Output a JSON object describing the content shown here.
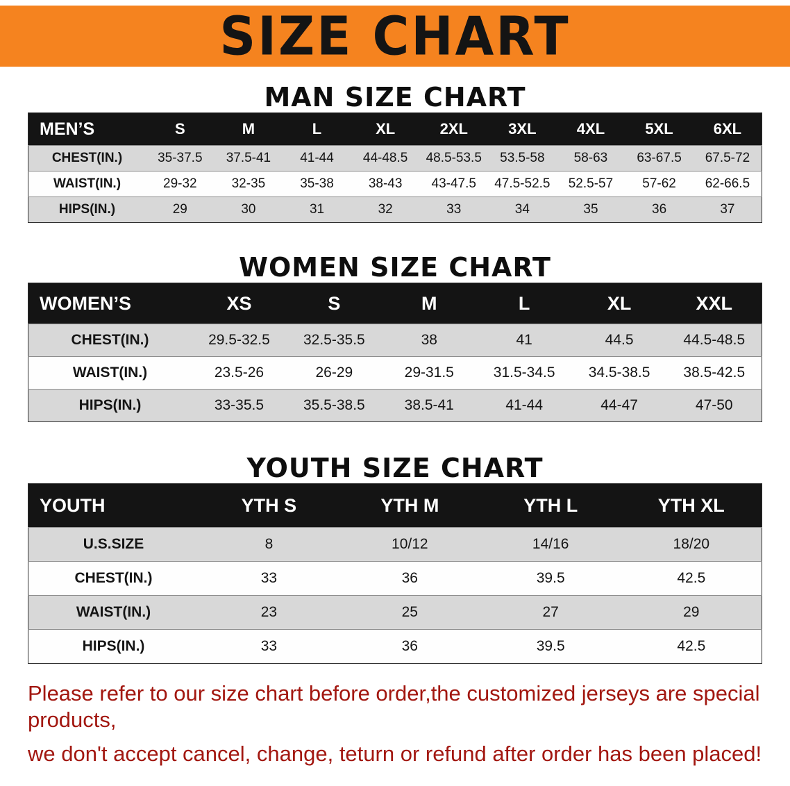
{
  "banner": {
    "title": "SIZE CHART",
    "background_color": "#f5831f",
    "text_color": "#141414"
  },
  "colors": {
    "table_header_bg": "#141414",
    "table_header_text": "#ffffff",
    "row_shaded": "#d8d8d8",
    "row_plain": "#fefefe",
    "disclaimer_text": "#a21710"
  },
  "men": {
    "heading": "MAN SIZE CHART",
    "table": {
      "header": [
        "MEN’S",
        "S",
        "M",
        "L",
        "XL",
        "2XL",
        "3XL",
        "4XL",
        "5XL",
        "6XL"
      ],
      "rows": [
        [
          "CHEST(IN.)",
          "35-37.5",
          "37.5-41",
          "41-44",
          "44-48.5",
          "48.5-53.5",
          "53.5-58",
          "58-63",
          "63-67.5",
          "67.5-72"
        ],
        [
          "WAIST(IN.)",
          "29-32",
          "32-35",
          "35-38",
          "38-43",
          "43-47.5",
          "47.5-52.5",
          "52.5-57",
          "57-62",
          "62-66.5"
        ],
        [
          "HIPS(IN.)",
          "29",
          "30",
          "31",
          "32",
          "33",
          "34",
          "35",
          "36",
          "37"
        ]
      ]
    }
  },
  "women": {
    "heading": "WOMEN SIZE CHART",
    "table": {
      "header": [
        "WOMEN’S",
        "XS",
        "S",
        "M",
        "L",
        "XL",
        "XXL"
      ],
      "rows": [
        [
          "CHEST(IN.)",
          "29.5-32.5",
          "32.5-35.5",
          "38",
          "41",
          "44.5",
          "44.5-48.5"
        ],
        [
          "WAIST(IN.)",
          "23.5-26",
          "26-29",
          "29-31.5",
          "31.5-34.5",
          "34.5-38.5",
          "38.5-42.5"
        ],
        [
          "HIPS(IN.)",
          "33-35.5",
          "35.5-38.5",
          "38.5-41",
          "41-44",
          "44-47",
          "47-50"
        ]
      ]
    }
  },
  "youth": {
    "heading": "YOUTH SIZE CHART",
    "table": {
      "header": [
        "YOUTH",
        "YTH S",
        "YTH M",
        "YTH L",
        "YTH XL"
      ],
      "rows": [
        [
          "U.S.SIZE",
          "8",
          "10/12",
          "14/16",
          "18/20"
        ],
        [
          "CHEST(IN.)",
          "33",
          "36",
          "39.5",
          "42.5"
        ],
        [
          "WAIST(IN.)",
          "23",
          "25",
          "27",
          "29"
        ],
        [
          "HIPS(IN.)",
          "33",
          "36",
          "39.5",
          "42.5"
        ]
      ]
    }
  },
  "disclaimer": {
    "line1": "Please refer to our size chart before order,the customized jerseys are special products,",
    "line2": "we don't accept cancel, change, teturn or refund after order has been placed!"
  }
}
